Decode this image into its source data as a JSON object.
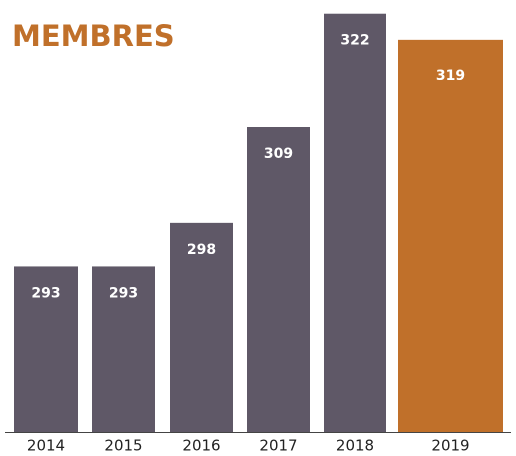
{
  "chart_data": {
    "type": "bar",
    "title": "MEMBRES",
    "categories": [
      "2014",
      "2015",
      "2016",
      "2017",
      "2018",
      "2019"
    ],
    "values": [
      293,
      293,
      298,
      309,
      322,
      319
    ],
    "colors": [
      "#5f5867",
      "#5f5867",
      "#5f5867",
      "#5f5867",
      "#5f5867",
      "#c0702a"
    ],
    "ylim": [
      274,
      323
    ]
  }
}
